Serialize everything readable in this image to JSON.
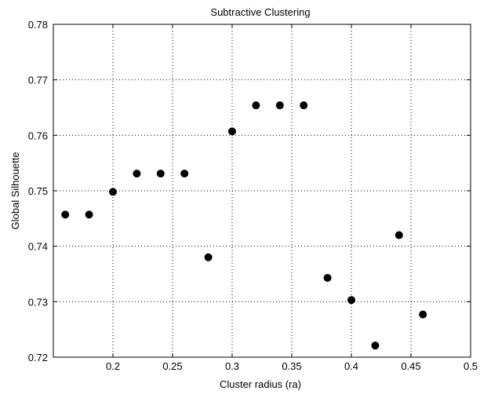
{
  "chart_data": {
    "type": "scatter",
    "title": "Subtractive Clustering",
    "xlabel": "Cluster radius (ra)",
    "ylabel": "Global Silhouette",
    "xlim": [
      0.15,
      0.5
    ],
    "ylim": [
      0.72,
      0.78
    ],
    "grid": true,
    "x_tick_labels": [
      "0.2",
      "0.25",
      "0.3",
      "0.35",
      "0.4",
      "0.45",
      "0.5"
    ],
    "y_tick_labels": [
      "0.72",
      "0.73",
      "0.74",
      "0.75",
      "0.76",
      "0.77",
      "0.78"
    ],
    "marker_color": "#000000",
    "points": [
      {
        "x": 0.16,
        "y": 0.7457
      },
      {
        "x": 0.18,
        "y": 0.7457
      },
      {
        "x": 0.2,
        "y": 0.7498
      },
      {
        "x": 0.22,
        "y": 0.7531
      },
      {
        "x": 0.24,
        "y": 0.7531
      },
      {
        "x": 0.26,
        "y": 0.7531
      },
      {
        "x": 0.28,
        "y": 0.738
      },
      {
        "x": 0.3,
        "y": 0.7607
      },
      {
        "x": 0.32,
        "y": 0.7654
      },
      {
        "x": 0.34,
        "y": 0.7654
      },
      {
        "x": 0.36,
        "y": 0.7654
      },
      {
        "x": 0.38,
        "y": 0.7343
      },
      {
        "x": 0.4,
        "y": 0.7303
      },
      {
        "x": 0.42,
        "y": 0.7221
      },
      {
        "x": 0.44,
        "y": 0.742
      },
      {
        "x": 0.46,
        "y": 0.7277
      }
    ]
  }
}
